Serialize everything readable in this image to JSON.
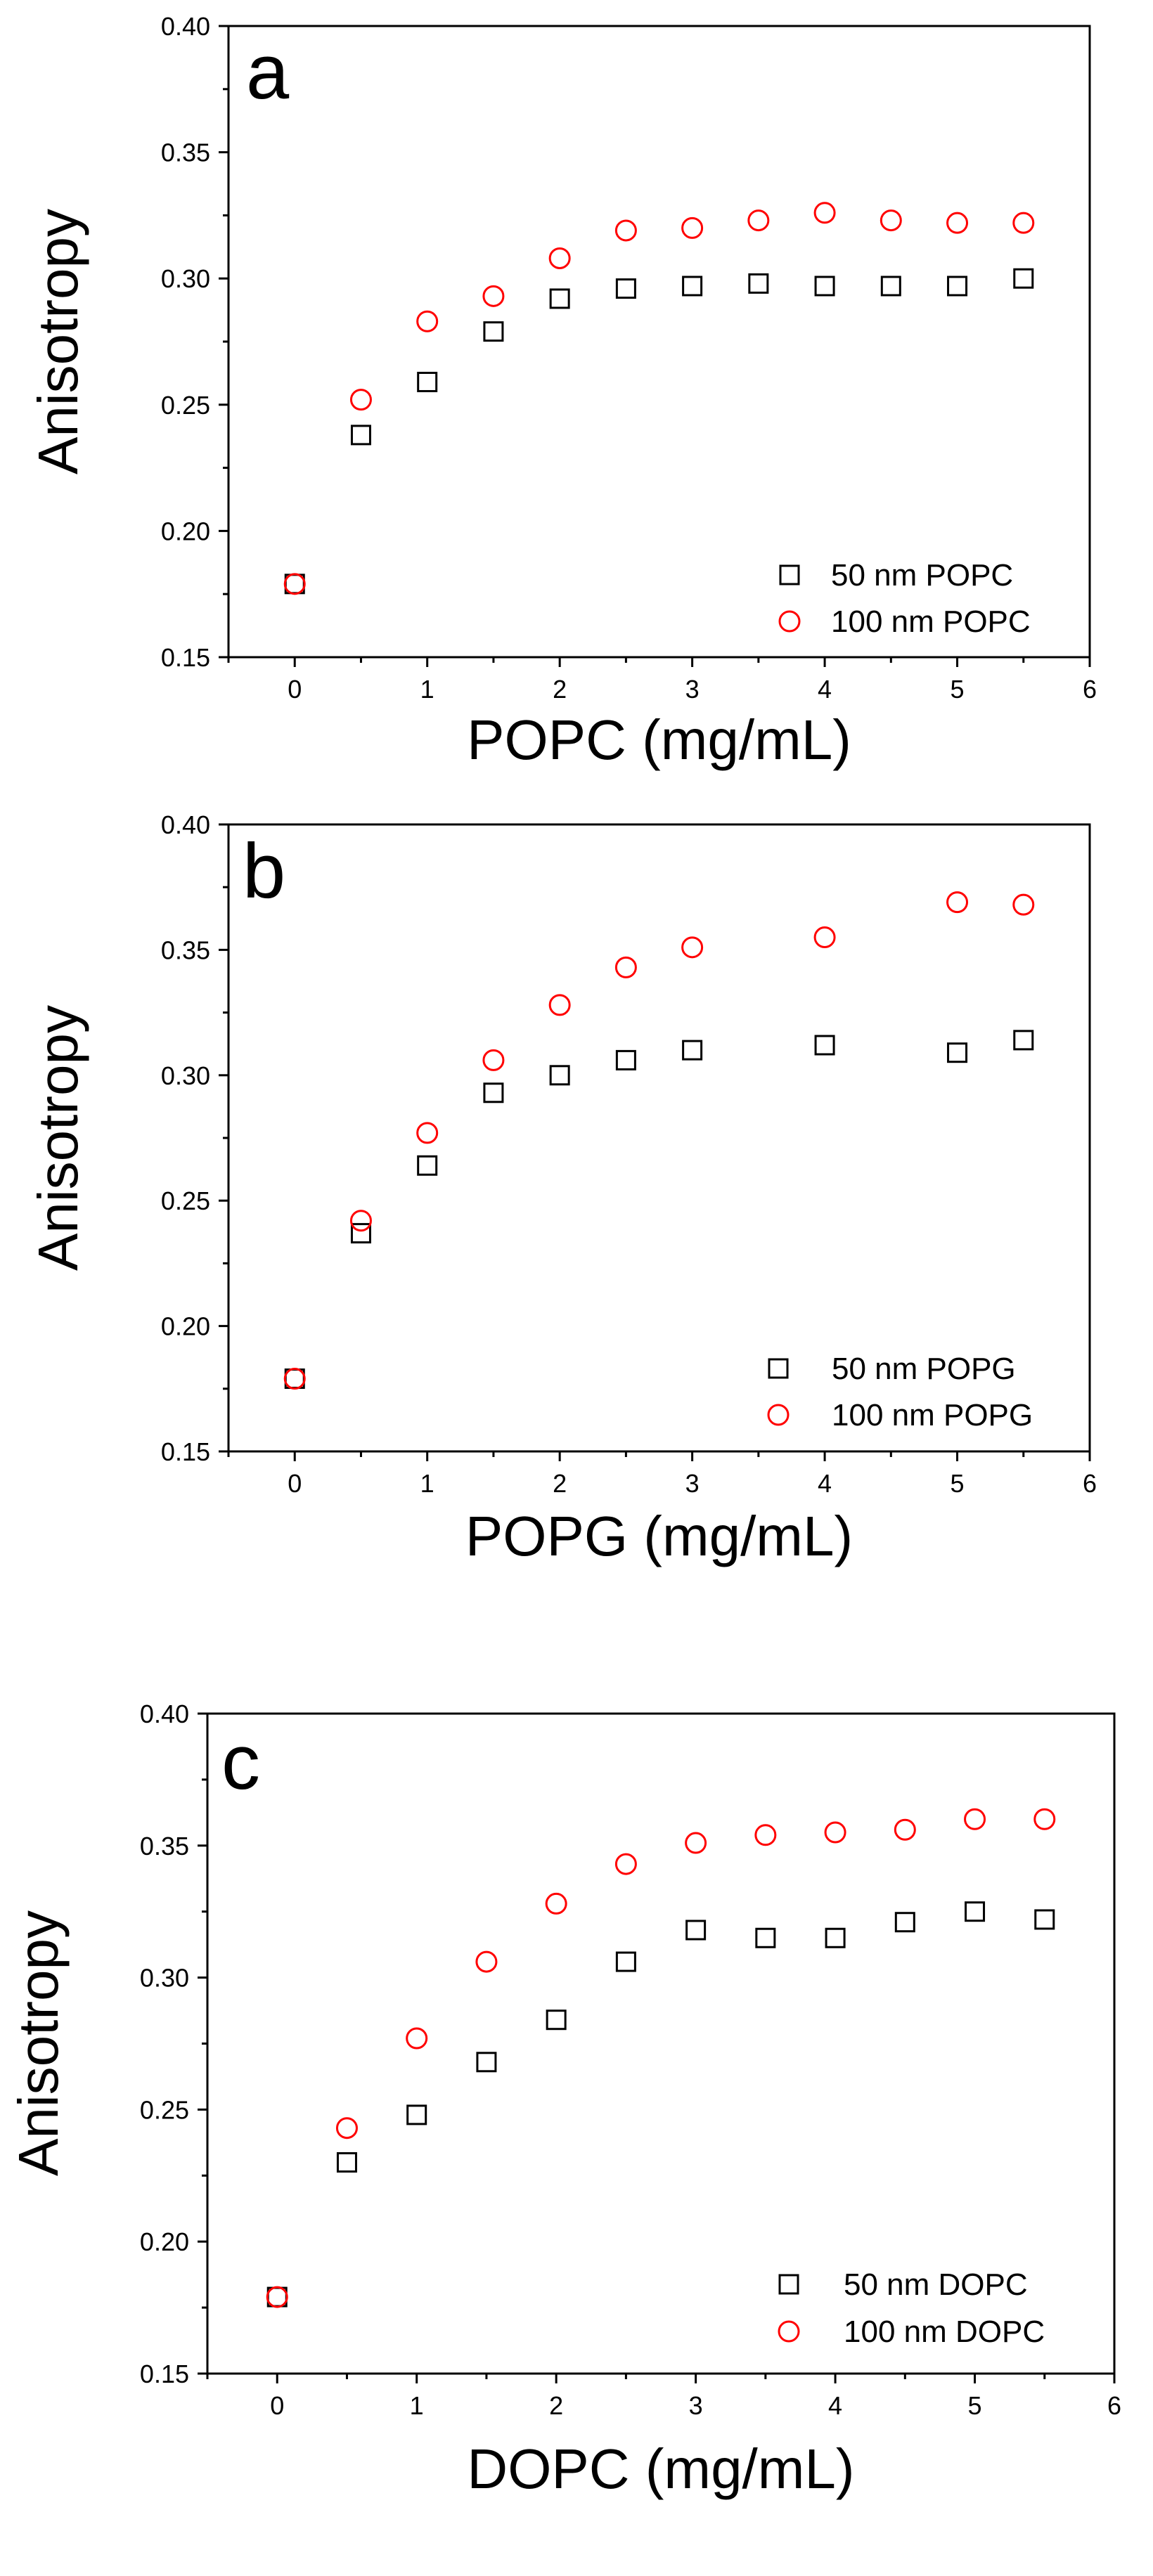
{
  "chart_data": [
    {
      "type": "scatter",
      "panel_label": "a",
      "xlabel": "POPC (mg/mL)",
      "ylabel": "Anisotropy",
      "xlim": [
        -0.5,
        6
      ],
      "ylim": [
        0.15,
        0.4
      ],
      "xticks": [
        0,
        1,
        2,
        3,
        4,
        5,
        6
      ],
      "yticks": [
        0.15,
        0.2,
        0.25,
        0.3,
        0.35,
        0.4
      ],
      "legend_position": "bottom-right",
      "grid": false,
      "series": [
        {
          "name": "50 nm POPC",
          "marker": "square",
          "color": "#000000",
          "x": [
            0,
            0.5,
            1,
            1.5,
            2,
            2.5,
            3,
            3.5,
            4,
            4.5,
            5,
            5.5
          ],
          "y": [
            0.179,
            0.238,
            0.259,
            0.279,
            0.292,
            0.296,
            0.297,
            0.298,
            0.297,
            0.297,
            0.297,
            0.3
          ]
        },
        {
          "name": "100 nm POPC",
          "marker": "circle",
          "color": "#ff0000",
          "x": [
            0,
            0.5,
            1,
            1.5,
            2,
            2.5,
            3,
            3.5,
            4,
            4.5,
            5,
            5.5
          ],
          "y": [
            0.179,
            0.252,
            0.283,
            0.293,
            0.308,
            0.319,
            0.32,
            0.323,
            0.326,
            0.323,
            0.322,
            0.322
          ]
        }
      ]
    },
    {
      "type": "scatter",
      "panel_label": "b",
      "xlabel": "POPG (mg/mL)",
      "ylabel": "Anisotropy",
      "xlim": [
        -0.5,
        6
      ],
      "ylim": [
        0.15,
        0.4
      ],
      "xticks": [
        0,
        1,
        2,
        3,
        4,
        5,
        6
      ],
      "yticks": [
        0.15,
        0.2,
        0.25,
        0.3,
        0.35,
        0.4
      ],
      "legend_position": "bottom-right",
      "grid": false,
      "series": [
        {
          "name": "50 nm POPG",
          "marker": "square",
          "color": "#000000",
          "x": [
            0,
            0.5,
            1,
            1.5,
            2,
            2.5,
            3,
            4,
            5,
            5.5
          ],
          "y": [
            0.179,
            0.237,
            0.264,
            0.293,
            0.3,
            0.306,
            0.31,
            0.312,
            0.309,
            0.314
          ]
        },
        {
          "name": "100 nm POPG",
          "marker": "circle",
          "color": "#ff0000",
          "x": [
            0,
            0.5,
            1,
            1.5,
            2,
            2.5,
            3,
            4,
            5,
            5.5
          ],
          "y": [
            0.179,
            0.242,
            0.277,
            0.306,
            0.328,
            0.343,
            0.351,
            0.355,
            0.369,
            0.368
          ]
        }
      ]
    },
    {
      "type": "scatter",
      "panel_label": "c",
      "xlabel": "DOPC (mg/mL)",
      "ylabel": "Anisotropy",
      "xlim": [
        -0.5,
        6
      ],
      "ylim": [
        0.15,
        0.4
      ],
      "xticks": [
        0,
        1,
        2,
        3,
        4,
        5,
        6
      ],
      "yticks": [
        0.15,
        0.2,
        0.25,
        0.3,
        0.35,
        0.4
      ],
      "legend_position": "bottom-right",
      "grid": false,
      "series": [
        {
          "name": "50 nm DOPC",
          "marker": "square",
          "color": "#000000",
          "x": [
            0,
            0.5,
            1,
            1.5,
            2,
            2.5,
            3,
            3.5,
            4,
            4.5,
            5,
            5.5
          ],
          "y": [
            0.179,
            0.23,
            0.248,
            0.268,
            0.284,
            0.306,
            0.318,
            0.315,
            0.315,
            0.321,
            0.325,
            0.322
          ]
        },
        {
          "name": "100 nm DOPC",
          "marker": "circle",
          "color": "#ff0000",
          "x": [
            0,
            0.5,
            1,
            1.5,
            2,
            2.5,
            3,
            3.5,
            4,
            4.5,
            5,
            5.5
          ],
          "y": [
            0.179,
            0.243,
            0.277,
            0.306,
            0.328,
            0.343,
            0.351,
            0.354,
            0.355,
            0.356,
            0.36,
            0.36
          ]
        }
      ]
    }
  ]
}
